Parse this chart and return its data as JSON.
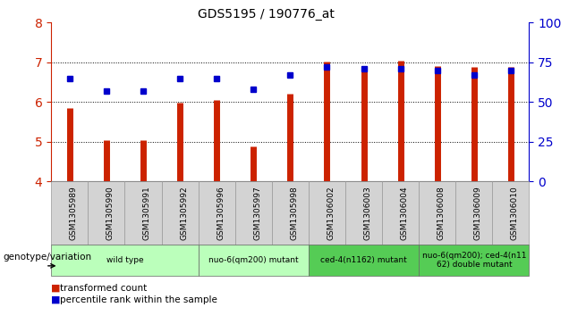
{
  "title": "GDS5195 / 190776_at",
  "samples": [
    "GSM1305989",
    "GSM1305990",
    "GSM1305991",
    "GSM1305992",
    "GSM1305996",
    "GSM1305997",
    "GSM1305998",
    "GSM1306002",
    "GSM1306003",
    "GSM1306004",
    "GSM1306008",
    "GSM1306009",
    "GSM1306010"
  ],
  "red_values": [
    5.85,
    5.05,
    5.05,
    5.98,
    6.05,
    4.88,
    6.2,
    7.03,
    6.9,
    7.05,
    6.9,
    6.88,
    6.88
  ],
  "blue_values": [
    65,
    57,
    57,
    65,
    65,
    58,
    67,
    72,
    71,
    71,
    70,
    67,
    70
  ],
  "ylim_left": [
    4,
    8
  ],
  "ylim_right": [
    0,
    100
  ],
  "yticks_left": [
    4,
    5,
    6,
    7,
    8
  ],
  "yticks_right": [
    0,
    25,
    50,
    75,
    100
  ],
  "grid_values": [
    5,
    6,
    7
  ],
  "group_boundaries": [
    {
      "start": 0,
      "end": 3,
      "label": "wild type",
      "color": "#bbffbb"
    },
    {
      "start": 4,
      "end": 6,
      "label": "nuo-6(qm200) mutant",
      "color": "#bbffbb"
    },
    {
      "start": 7,
      "end": 9,
      "label": "ced-4(n1162) mutant",
      "color": "#55cc55"
    },
    {
      "start": 10,
      "end": 12,
      "label": "nuo-6(qm200); ced-4(n11\n62) double mutant",
      "color": "#55cc55"
    }
  ],
  "bar_color": "#cc2200",
  "dot_color": "#0000cc",
  "legend_label_red": "transformed count",
  "legend_label_blue": "percentile rank within the sample",
  "genotype_label": "genotype/variation",
  "background_color": "#ffffff",
  "bar_bottom": 4.0
}
